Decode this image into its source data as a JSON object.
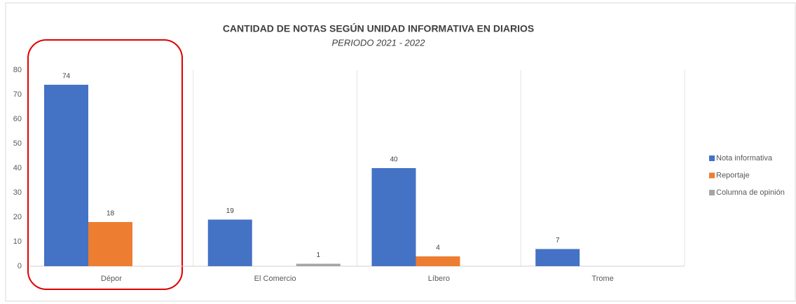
{
  "chart_data": {
    "type": "bar",
    "title": "CANTIDAD DE NOTAS SEGÚN UNIDAD INFORMATIVA EN DIARIOS",
    "subtitle": "PERIODO 2021 - 2022",
    "categories": [
      "Dépor",
      "El Comercio",
      "Líbero",
      "Trome"
    ],
    "series": [
      {
        "name": "Nota informativa",
        "color": "#4472c4",
        "values": [
          74,
          19,
          40,
          7
        ]
      },
      {
        "name": "Reportaje",
        "color": "#ed7d31",
        "values": [
          18,
          null,
          4,
          null
        ]
      },
      {
        "name": "Columna de opinión",
        "color": "#a5a5a5",
        "values": [
          null,
          1,
          null,
          null
        ]
      }
    ],
    "ylim": [
      0,
      80
    ],
    "yticks": [
      0,
      10,
      20,
      30,
      40,
      50,
      60,
      70,
      80
    ],
    "legend": "right"
  }
}
